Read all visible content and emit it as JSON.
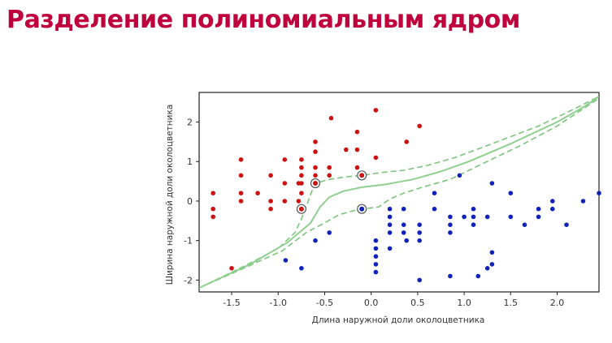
{
  "page": {
    "title": "Разделение полиномиальным ядром",
    "title_color": "#c0003c"
  },
  "chart_data": {
    "type": "scatter",
    "title": "",
    "xlabel": "Длина наружной доли околоцветника",
    "ylabel": "Ширина наружной доли околоцветника",
    "xlim": [
      -1.85,
      2.45
    ],
    "ylim": [
      -2.3,
      2.75
    ],
    "xticks": [
      -1.5,
      -1.0,
      -0.5,
      0.0,
      0.5,
      1.0,
      1.5,
      2.0
    ],
    "xtick_labels": [
      "-1.5",
      "-1.0",
      "-0.5",
      "0.0",
      "0.5",
      "1.0",
      "1.5",
      "2.0"
    ],
    "yticks": [
      -2,
      -1,
      0,
      1,
      2
    ],
    "ytick_labels": [
      "-2",
      "-1",
      "0",
      "1",
      "2"
    ],
    "grid": false,
    "legend": "none",
    "colors": {
      "class_red": "#cc1111",
      "class_blue": "#1122bb",
      "boundary": "#8fcf8f",
      "margin": "#7cc47c",
      "support_vector_ring": "#555555"
    },
    "series": [
      {
        "color": "red",
        "points": [
          [
            -1.7,
            0.2
          ],
          [
            -1.7,
            -0.2
          ],
          [
            -1.7,
            -0.4
          ],
          [
            -1.5,
            -1.7
          ],
          [
            -1.4,
            1.05
          ],
          [
            -1.4,
            0.65
          ],
          [
            -1.4,
            0.2
          ],
          [
            -1.4,
            0.0
          ],
          [
            -1.22,
            0.2
          ],
          [
            -1.08,
            0.65
          ],
          [
            -1.08,
            0.0
          ],
          [
            -1.08,
            -0.2
          ],
          [
            -0.93,
            1.05
          ],
          [
            -0.93,
            0.45
          ],
          [
            -0.93,
            0.0
          ],
          [
            -0.78,
            0.45
          ],
          [
            -0.78,
            0.0
          ],
          [
            -0.75,
            1.05
          ],
          [
            -0.75,
            0.85
          ],
          [
            -0.75,
            0.65
          ],
          [
            -0.75,
            0.45
          ],
          [
            -0.75,
            0.2
          ],
          [
            -0.6,
            1.5
          ],
          [
            -0.6,
            1.25
          ],
          [
            -0.6,
            0.85
          ],
          [
            -0.6,
            0.65
          ],
          [
            -0.45,
            0.85
          ],
          [
            -0.45,
            0.65
          ],
          [
            -0.43,
            2.1
          ],
          [
            -0.27,
            1.3
          ],
          [
            -0.15,
            1.75
          ],
          [
            -0.15,
            1.3
          ],
          [
            -0.15,
            0.85
          ],
          [
            0.05,
            2.3
          ],
          [
            0.05,
            1.1
          ],
          [
            0.38,
            1.5
          ],
          [
            0.52,
            1.9
          ]
        ]
      },
      {
        "color": "blue",
        "points": [
          [
            -0.92,
            -1.5
          ],
          [
            -0.75,
            -1.7
          ],
          [
            -0.6,
            -1.0
          ],
          [
            -0.45,
            -0.8
          ],
          [
            0.05,
            -1.0
          ],
          [
            0.05,
            -1.2
          ],
          [
            0.05,
            -1.4
          ],
          [
            0.05,
            -1.6
          ],
          [
            0.05,
            -1.8
          ],
          [
            0.2,
            -0.2
          ],
          [
            0.2,
            -0.4
          ],
          [
            0.2,
            -0.6
          ],
          [
            0.2,
            -0.8
          ],
          [
            0.2,
            -1.2
          ],
          [
            0.35,
            -0.2
          ],
          [
            0.35,
            -0.6
          ],
          [
            0.35,
            -0.8
          ],
          [
            0.38,
            -1.0
          ],
          [
            0.52,
            -0.6
          ],
          [
            0.52,
            -0.8
          ],
          [
            0.52,
            -1.0
          ],
          [
            0.52,
            -2.0
          ],
          [
            0.68,
            0.2
          ],
          [
            0.68,
            -0.2
          ],
          [
            0.85,
            -0.4
          ],
          [
            0.85,
            -0.6
          ],
          [
            0.85,
            -0.8
          ],
          [
            0.85,
            -1.9
          ],
          [
            0.95,
            0.65
          ],
          [
            1.0,
            -0.4
          ],
          [
            1.1,
            -0.2
          ],
          [
            1.1,
            -0.4
          ],
          [
            1.1,
            -0.6
          ],
          [
            1.15,
            -1.9
          ],
          [
            1.25,
            -0.4
          ],
          [
            1.25,
            -1.7
          ],
          [
            1.3,
            0.45
          ],
          [
            1.3,
            -1.3
          ],
          [
            1.3,
            -1.6
          ],
          [
            1.5,
            0.2
          ],
          [
            1.5,
            -0.4
          ],
          [
            1.65,
            -0.6
          ],
          [
            1.8,
            -0.2
          ],
          [
            1.8,
            -0.4
          ],
          [
            1.95,
            0.0
          ],
          [
            1.95,
            -0.2
          ],
          [
            2.1,
            -0.6
          ],
          [
            2.28,
            0.0
          ],
          [
            2.45,
            0.2
          ]
        ]
      }
    ],
    "support_vectors": [
      [
        -0.75,
        -0.2
      ],
      [
        -0.6,
        0.45
      ],
      [
        -0.1,
        0.65
      ],
      [
        -0.1,
        -0.2
      ]
    ],
    "decision_boundary": [
      [
        -1.85,
        -2.2
      ],
      [
        -1.3,
        -1.6
      ],
      [
        -0.9,
        -1.05
      ],
      [
        -0.65,
        -0.55
      ],
      [
        -0.55,
        -0.15
      ],
      [
        -0.45,
        0.1
      ],
      [
        -0.3,
        0.25
      ],
      [
        -0.1,
        0.35
      ],
      [
        0.15,
        0.42
      ],
      [
        0.45,
        0.55
      ],
      [
        0.75,
        0.75
      ],
      [
        1.05,
        1.0
      ],
      [
        1.5,
        1.45
      ],
      [
        2.0,
        2.0
      ],
      [
        2.3,
        2.4
      ],
      [
        2.45,
        2.65
      ]
    ],
    "margin_upper": [
      [
        -1.85,
        -2.2
      ],
      [
        -1.35,
        -1.63
      ],
      [
        -1.0,
        -1.2
      ],
      [
        -0.82,
        -0.8
      ],
      [
        -0.75,
        -0.45
      ],
      [
        -0.7,
        -0.15
      ],
      [
        -0.65,
        0.18
      ],
      [
        -0.6,
        0.45
      ],
      [
        -0.45,
        0.55
      ],
      [
        -0.25,
        0.62
      ],
      [
        -0.1,
        0.65
      ],
      [
        0.1,
        0.72
      ],
      [
        0.35,
        0.78
      ],
      [
        0.6,
        0.9
      ],
      [
        0.9,
        1.1
      ],
      [
        1.3,
        1.45
      ],
      [
        1.8,
        1.9
      ],
      [
        2.2,
        2.35
      ],
      [
        2.45,
        2.65
      ]
    ],
    "margin_lower": [
      [
        -1.85,
        -2.2
      ],
      [
        -1.35,
        -1.68
      ],
      [
        -0.95,
        -1.25
      ],
      [
        -0.7,
        -0.8
      ],
      [
        -0.5,
        -0.55
      ],
      [
        -0.35,
        -0.35
      ],
      [
        -0.2,
        -0.25
      ],
      [
        -0.1,
        -0.2
      ],
      [
        0.08,
        -0.15
      ],
      [
        0.2,
        0.05
      ],
      [
        0.35,
        0.2
      ],
      [
        0.55,
        0.35
      ],
      [
        0.85,
        0.55
      ],
      [
        1.2,
        0.95
      ],
      [
        1.6,
        1.4
      ],
      [
        2.0,
        1.9
      ],
      [
        2.45,
        2.6
      ]
    ]
  }
}
